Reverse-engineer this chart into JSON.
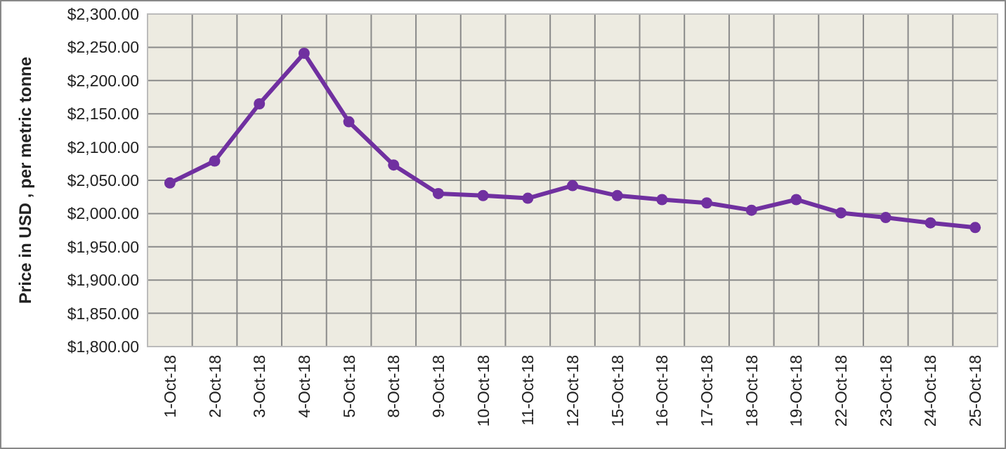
{
  "chart_data": {
    "type": "line",
    "ylabel": "Price in USD , per metric tonne",
    "categories": [
      "1-Oct-18",
      "2-Oct-18",
      "3-Oct-18",
      "4-Oct-18",
      "5-Oct-18",
      "8-Oct-18",
      "9-Oct-18",
      "10-Oct-18",
      "11-Oct-18",
      "12-Oct-18",
      "15-Oct-18",
      "16-Oct-18",
      "17-Oct-18",
      "18-Oct-18",
      "19-Oct-18",
      "22-Oct-18",
      "23-Oct-18",
      "24-Oct-18",
      "25-Oct-18"
    ],
    "series": [
      {
        "color": "#7030a0",
        "values": [
          2046,
          2079,
          2165,
          2241,
          2138,
          2073,
          2030,
          2027,
          2023,
          2042,
          2027,
          2021,
          2016,
          2005,
          2021,
          2001,
          1994,
          1986,
          1979
        ]
      }
    ],
    "ylim": [
      1800,
      2300
    ],
    "yticks": [
      {
        "value": 1800,
        "label": "$1,800.00"
      },
      {
        "value": 1850,
        "label": "$1,850.00"
      },
      {
        "value": 1900,
        "label": "$1,900.00"
      },
      {
        "value": 1950,
        "label": "$1,950.00"
      },
      {
        "value": 2000,
        "label": "$2,000.00"
      },
      {
        "value": 2050,
        "label": "$2,050.00"
      },
      {
        "value": 2100,
        "label": "$2,100.00"
      },
      {
        "value": 2150,
        "label": "$2,150.00"
      },
      {
        "value": 2200,
        "label": "$2,200.00"
      },
      {
        "value": 2250,
        "label": "$2,250.00"
      },
      {
        "value": 2300,
        "label": "$2,300.00"
      }
    ],
    "grid": true,
    "marker": "circle",
    "line_style": "solid"
  }
}
